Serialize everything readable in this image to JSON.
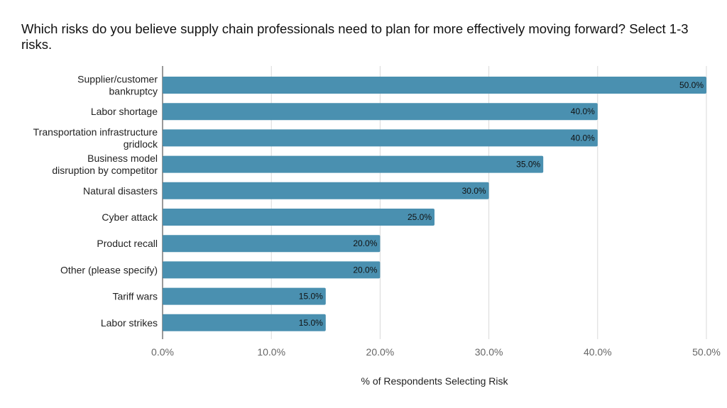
{
  "chart_data": {
    "type": "bar",
    "orientation": "horizontal",
    "title": "Which risks do you believe supply chain professionals need to plan for more effectively moving forward? Select 1-3 risks.",
    "xlabel": "% of Respondents Selecting Risk",
    "ylabel": "",
    "categories": [
      [
        "Supplier/customer",
        "bankruptcy"
      ],
      [
        "Labor shortage"
      ],
      [
        "Transportation infrastructure",
        "gridlock"
      ],
      [
        "Business model",
        "disruption by competitor"
      ],
      [
        "Natural disasters"
      ],
      [
        "Cyber attack"
      ],
      [
        "Product recall"
      ],
      [
        "Other (please specify)"
      ],
      [
        "Tariff wars"
      ],
      [
        "Labor strikes"
      ]
    ],
    "values": [
      50.0,
      40.0,
      40.0,
      35.0,
      30.0,
      25.0,
      20.0,
      20.0,
      15.0,
      15.0
    ],
    "data_labels": [
      "50.0%",
      "40.0%",
      "40.0%",
      "35.0%",
      "30.0%",
      "25.0%",
      "20.0%",
      "20.0%",
      "15.0%",
      "15.0%"
    ],
    "xlim": [
      0,
      50
    ],
    "xticks": [
      0,
      10,
      20,
      30,
      40,
      50
    ],
    "xtick_labels": [
      "0.0%",
      "10.0%",
      "20.0%",
      "30.0%",
      "40.0%",
      "50.0%"
    ],
    "grid": "vertical",
    "legend": "none",
    "bar_color": "#4a90b0",
    "grid_color": "#d9d9d9"
  }
}
